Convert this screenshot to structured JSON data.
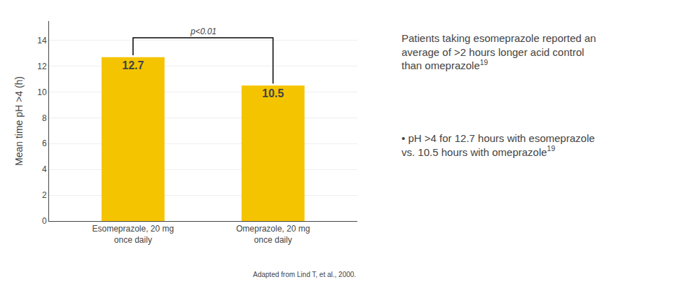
{
  "chart_data": {
    "type": "bar",
    "categories": [
      "Esomeprazole, 20 mg\nonce daily",
      "Omeprazole, 20 mg\nonce daily"
    ],
    "values": [
      12.7,
      10.5
    ],
    "color": "#f5c400",
    "ylabel": "Mean time pH >4 (h)",
    "ylim": [
      0,
      15.5
    ],
    "yticks": [
      0,
      2,
      4,
      6,
      8,
      10,
      12,
      14
    ],
    "grid": true,
    "data_labels": true,
    "annotations": [
      "p<0.01",
      "Adapted from Lind T, et al., 2000.",
      "Patients taking esomeprazole reported an average of >2 hours longer acid control than omeprazole",
      "19",
      "• pH >4 for 12.7 hours with esomeprazole vs. 10.5 hours with omeprazole",
      "19"
    ]
  }
}
